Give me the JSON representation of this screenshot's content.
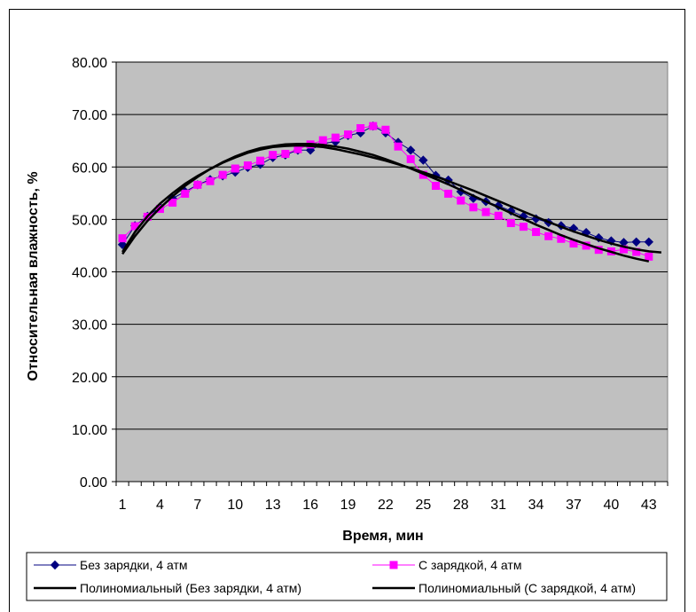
{
  "chart_data": {
    "type": "line",
    "xlabel": "Время, мин",
    "ylabel": "Относительная влажность, %",
    "ylim": [
      0,
      80
    ],
    "yticks": [
      "0.00",
      "10.00",
      "20.00",
      "30.00",
      "40.00",
      "50.00",
      "60.00",
      "70.00",
      "80.00"
    ],
    "xlim": [
      1,
      44
    ],
    "xticks": [
      1,
      4,
      7,
      10,
      13,
      16,
      19,
      22,
      25,
      28,
      31,
      34,
      37,
      40,
      43
    ],
    "grid": true,
    "plot_background": "#C0C0C0",
    "legend_position": "bottom",
    "series": [
      {
        "name": "Без зарядки, 4 атм",
        "color": "#000080",
        "marker": "diamond",
        "x": [
          1,
          2,
          3,
          4,
          5,
          6,
          7,
          8,
          9,
          10,
          11,
          12,
          13,
          14,
          15,
          16,
          17,
          18,
          19,
          20,
          21,
          22,
          23,
          24,
          25,
          26,
          27,
          28,
          29,
          30,
          31,
          32,
          33,
          34,
          35,
          36,
          37,
          38,
          39,
          40,
          41,
          42,
          43
        ],
        "values": [
          45.2,
          48.8,
          50.6,
          52.3,
          54.0,
          55.3,
          56.6,
          57.6,
          58.3,
          59.0,
          59.9,
          60.5,
          61.8,
          62.3,
          63.2,
          63.2,
          64.5,
          64.8,
          66.0,
          66.5,
          67.8,
          66.5,
          64.7,
          63.2,
          61.3,
          58.4,
          57.5,
          55.3,
          54.0,
          53.4,
          52.6,
          51.6,
          50.6,
          50.1,
          49.4,
          48.8,
          48.3,
          47.5,
          46.5,
          45.9,
          45.6,
          45.7,
          45.7
        ]
      },
      {
        "name": "С зарядкой, 4 атм",
        "color": "#FF00FF",
        "marker": "square",
        "x": [
          1,
          2,
          3,
          4,
          5,
          6,
          7,
          8,
          9,
          10,
          11,
          12,
          13,
          14,
          15,
          16,
          17,
          18,
          19,
          20,
          21,
          22,
          23,
          24,
          25,
          26,
          27,
          28,
          29,
          30,
          31,
          32,
          33,
          34,
          35,
          36,
          37,
          38,
          39,
          40,
          41,
          42,
          43
        ],
        "values": [
          46.4,
          48.7,
          50.5,
          52.0,
          53.2,
          54.9,
          56.6,
          57.3,
          58.5,
          59.7,
          60.3,
          61.2,
          62.3,
          62.5,
          63.4,
          64.3,
          65.1,
          65.6,
          66.2,
          67.4,
          67.8,
          67.1,
          63.9,
          61.5,
          58.5,
          56.4,
          54.9,
          53.6,
          52.3,
          51.4,
          50.7,
          49.3,
          48.6,
          47.6,
          46.8,
          46.3,
          45.4,
          45.0,
          44.2,
          43.9,
          44.3,
          43.8,
          42.9
        ]
      },
      {
        "name": "Полиномиальный (Без зарядки, 4 атм)",
        "color": "#000000",
        "marker": "none",
        "x": [
          1,
          2,
          3,
          4,
          5,
          6,
          7,
          8,
          9,
          10,
          11,
          12,
          13,
          14,
          15,
          16,
          17,
          18,
          19,
          20,
          21,
          22,
          23,
          24,
          25,
          26,
          27,
          28,
          29,
          30,
          31,
          32,
          33,
          34,
          35,
          36,
          37,
          38,
          39,
          40,
          41,
          42,
          43,
          44
        ],
        "values": [
          43.8,
          47.6,
          50.6,
          53.0,
          55.0,
          56.8,
          58.3,
          59.6,
          60.8,
          61.8,
          62.7,
          63.3,
          63.8,
          64.0,
          64.1,
          64.0,
          63.8,
          63.4,
          62.9,
          62.4,
          61.8,
          61.2,
          60.5,
          59.8,
          59.0,
          58.2,
          57.3,
          56.4,
          55.5,
          54.5,
          53.5,
          52.5,
          51.5,
          50.5,
          49.5,
          48.6,
          47.7,
          46.9,
          46.1,
          45.4,
          44.8,
          44.3,
          43.9,
          43.7
        ]
      },
      {
        "name": "Полиномиальный (С зарядкой, 4 атм)",
        "color": "#000000",
        "marker": "none",
        "x": [
          1,
          2,
          3,
          4,
          5,
          6,
          7,
          8,
          9,
          10,
          11,
          12,
          13,
          14,
          15,
          16,
          17,
          18,
          19,
          20,
          21,
          22,
          23,
          24,
          25,
          26,
          27,
          28,
          29,
          30,
          31,
          32,
          33,
          34,
          35,
          36,
          37,
          38,
          39,
          40,
          41,
          42,
          43
        ],
        "values": [
          43.4,
          46.8,
          49.7,
          52.2,
          54.4,
          56.4,
          58.1,
          59.6,
          60.9,
          62.0,
          62.9,
          63.6,
          64.0,
          64.3,
          64.4,
          64.4,
          64.2,
          63.9,
          63.5,
          62.9,
          62.3,
          61.5,
          60.6,
          59.7,
          58.7,
          57.7,
          56.7,
          55.6,
          54.5,
          53.4,
          52.3,
          51.2,
          50.1,
          49.0,
          48.0,
          47.0,
          46.1,
          45.3,
          44.5,
          43.8,
          43.1,
          42.5,
          42.0
        ]
      }
    ]
  }
}
